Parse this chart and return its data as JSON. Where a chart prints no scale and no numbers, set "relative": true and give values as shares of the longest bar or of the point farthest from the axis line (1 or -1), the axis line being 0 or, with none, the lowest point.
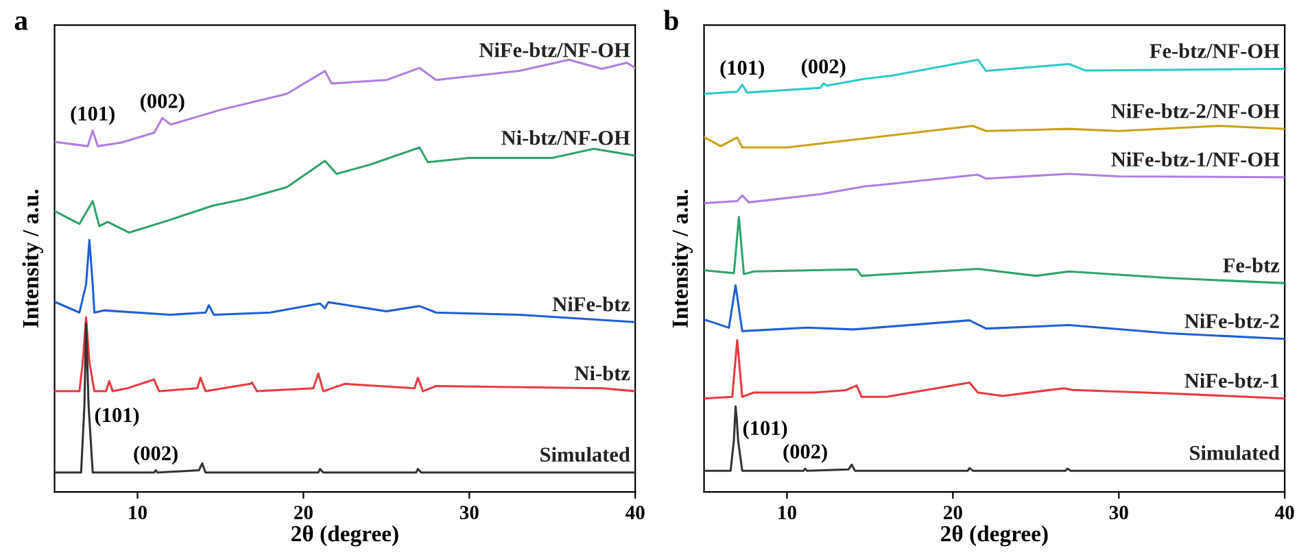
{
  "chart_data": [
    {
      "type": "line",
      "title": "a",
      "xlabel": "2θ (degree)",
      "ylabel": "Intensity / a.u.",
      "relative": true,
      "xlim": [
        5,
        40
      ],
      "xticks": [
        10,
        20,
        30,
        40
      ],
      "tick_labels": "x",
      "grid": false,
      "legend": false,
      "annotations": [
        {
          "text": "(101)",
          "x": 7.3,
          "y": 0.836
        },
        {
          "text": "(002)",
          "x": 11.5,
          "y": 0.865
        },
        {
          "text": "(101)",
          "x": 7.05,
          "y": 0.2
        },
        {
          "text": "(002)",
          "x": 11.1,
          "y": 0.05
        }
      ],
      "series": [
        {
          "name": "Simulated",
          "color": "#333333",
          "x": [
            5,
            6.6,
            6.8,
            6.9,
            7.05,
            7.3,
            11.0,
            11.1,
            11.2,
            13.7,
            13.9,
            14.1,
            20.9,
            21,
            21.2,
            26.8,
            26.9,
            27.1,
            40
          ],
          "values": [
            0.045,
            0.045,
            0.2,
            0.39,
            0.2,
            0.045,
            0.045,
            0.05,
            0.045,
            0.05,
            0.066,
            0.045,
            0.045,
            0.053,
            0.045,
            0.045,
            0.053,
            0.045,
            0.045
          ]
        },
        {
          "name": "Ni-btz",
          "color": "#e8393f",
          "x": [
            5,
            6.5,
            6.7,
            6.9,
            7.1,
            7.4,
            8.1,
            8.3,
            8.5,
            9.4,
            11.0,
            11.3,
            13.6,
            13.8,
            14.1,
            16.8,
            16.9,
            17.2,
            20.6,
            20.9,
            21.2,
            22.5,
            26.7,
            26.9,
            27.2,
            28,
            38,
            40
          ],
          "values": [
            0.233,
            0.233,
            0.3,
            0.404,
            0.3,
            0.233,
            0.233,
            0.256,
            0.233,
            0.24,
            0.26,
            0.233,
            0.24,
            0.264,
            0.233,
            0.25,
            0.253,
            0.233,
            0.24,
            0.274,
            0.233,
            0.25,
            0.24,
            0.264,
            0.233,
            0.245,
            0.24,
            0.233
          ]
        },
        {
          "name": "NiFe-btz",
          "color": "#1f5fd6",
          "x": [
            5,
            6.5,
            6.9,
            7.1,
            7.3,
            7.4,
            8,
            12,
            14.1,
            14.3,
            14.6,
            18,
            21,
            21.3,
            21.5,
            25,
            27,
            28,
            33,
            40
          ],
          "values": [
            0.44,
            0.415,
            0.48,
            0.583,
            0.48,
            0.415,
            0.42,
            0.41,
            0.415,
            0.432,
            0.41,
            0.415,
            0.436,
            0.425,
            0.439,
            0.418,
            0.43,
            0.415,
            0.41,
            0.393
          ]
        },
        {
          "name": "Ni-btz/NF-OH",
          "color": "#2fa36b",
          "x": [
            5,
            6.5,
            7.3,
            7.7,
            8.2,
            9.5,
            12,
            14.5,
            16.5,
            19,
            21.3,
            22,
            24,
            27,
            27.5,
            30,
            35,
            37.5,
            40
          ],
          "values": [
            0.65,
            0.62,
            0.673,
            0.615,
            0.625,
            0.6,
            0.63,
            0.662,
            0.678,
            0.705,
            0.766,
            0.736,
            0.757,
            0.797,
            0.763,
            0.773,
            0.773,
            0.794,
            0.778
          ]
        },
        {
          "name": "NiFe-btz/NF-OH",
          "color": "#b07ee0",
          "x": [
            5,
            7,
            7.3,
            7.6,
            9,
            11,
            11.5,
            12,
            15,
            19,
            21.3,
            21.7,
            25,
            27,
            28,
            33,
            36,
            38,
            39.5,
            40
          ],
          "values": [
            0.81,
            0.8,
            0.836,
            0.8,
            0.808,
            0.831,
            0.865,
            0.85,
            0.884,
            0.921,
            0.974,
            0.945,
            0.953,
            0.981,
            0.953,
            0.974,
            1.0,
            0.979,
            0.993,
            0.981
          ]
        }
      ]
    },
    {
      "type": "line",
      "title": "b",
      "xlabel": "2θ (degree)",
      "ylabel": "Intensity / a.u.",
      "relative": true,
      "xlim": [
        5,
        40
      ],
      "xticks": [
        10,
        20,
        30,
        40
      ],
      "tick_labels": "x",
      "grid": false,
      "legend": false,
      "annotations": [
        {
          "text": "(101)",
          "x": 7.3,
          "y": 0.942
        },
        {
          "text": "(002)",
          "x": 12.2,
          "y": 0.945
        },
        {
          "text": "(101)",
          "x": 6.97,
          "y": 0.17
        },
        {
          "text": "(002)",
          "x": 11.1,
          "y": 0.054
        }
      ],
      "series": [
        {
          "name": "Simulated",
          "color": "#333333",
          "x": [
            5,
            6.6,
            6.8,
            6.9,
            6.97,
            7.05,
            7.3,
            11.0,
            11.1,
            11.2,
            13.7,
            13.9,
            14.1,
            20.9,
            21,
            21.2,
            26.8,
            26.9,
            27.1,
            40
          ],
          "values": [
            0.049,
            0.049,
            0.12,
            0.198,
            0.17,
            0.12,
            0.049,
            0.049,
            0.054,
            0.049,
            0.052,
            0.063,
            0.049,
            0.049,
            0.055,
            0.049,
            0.049,
            0.054,
            0.049,
            0.049
          ]
        },
        {
          "name": "NiFe-btz-1",
          "color": "#e8393f",
          "x": [
            5,
            6.7,
            7.0,
            7.3,
            8.0,
            11.6,
            13.5,
            14.2,
            14.5,
            16,
            21,
            21.5,
            23,
            26.7,
            27.2,
            33,
            40
          ],
          "values": [
            0.216,
            0.22,
            0.351,
            0.22,
            0.23,
            0.23,
            0.235,
            0.246,
            0.22,
            0.22,
            0.253,
            0.23,
            0.222,
            0.24,
            0.236,
            0.228,
            0.216
          ]
        },
        {
          "name": "NiFe-btz-2",
          "color": "#1f5fd6",
          "x": [
            5,
            6.5,
            6.9,
            7.3,
            11.2,
            14,
            21,
            22,
            27,
            33,
            40
          ],
          "values": [
            0.399,
            0.38,
            0.478,
            0.372,
            0.38,
            0.376,
            0.397,
            0.378,
            0.386,
            0.367,
            0.354
          ]
        },
        {
          "name": "Fe-btz",
          "color": "#2fa36b",
          "x": [
            5,
            6.8,
            7.1,
            7.4,
            8,
            14.2,
            14.5,
            21,
            21.5,
            25,
            27,
            33,
            40
          ],
          "values": [
            0.513,
            0.506,
            0.636,
            0.504,
            0.51,
            0.515,
            0.5,
            0.515,
            0.516,
            0.5,
            0.51,
            0.495,
            0.483
          ]
        },
        {
          "name": "NiFe-btz-1/NF-OH",
          "color": "#b07ee0",
          "x": [
            5,
            7,
            7.3,
            7.7,
            12,
            14.7,
            16.3,
            21.5,
            22,
            27,
            30,
            40
          ],
          "values": [
            0.668,
            0.673,
            0.686,
            0.67,
            0.689,
            0.707,
            0.713,
            0.734,
            0.725,
            0.736,
            0.73,
            0.728
          ]
        },
        {
          "name": "NiFe-btz-2/NF-OH",
          "color": "#c9a01a",
          "x": [
            5,
            6,
            7.0,
            7.3,
            10,
            14,
            21.2,
            22,
            27,
            30,
            36,
            40
          ],
          "values": [
            0.821,
            0.8,
            0.82,
            0.797,
            0.797,
            0.815,
            0.847,
            0.835,
            0.84,
            0.835,
            0.847,
            0.84
          ]
        },
        {
          "name": "Fe-btz/NF-OH",
          "color": "#2ec9c9",
          "x": [
            5,
            7,
            7.3,
            7.6,
            12,
            12.2,
            12.4,
            14.7,
            16.3,
            21.5,
            22,
            27,
            28,
            40
          ],
          "values": [
            0.921,
            0.926,
            0.942,
            0.924,
            0.935,
            0.945,
            0.94,
            0.956,
            0.963,
            1.0,
            0.974,
            0.99,
            0.975,
            0.979
          ]
        }
      ]
    }
  ]
}
